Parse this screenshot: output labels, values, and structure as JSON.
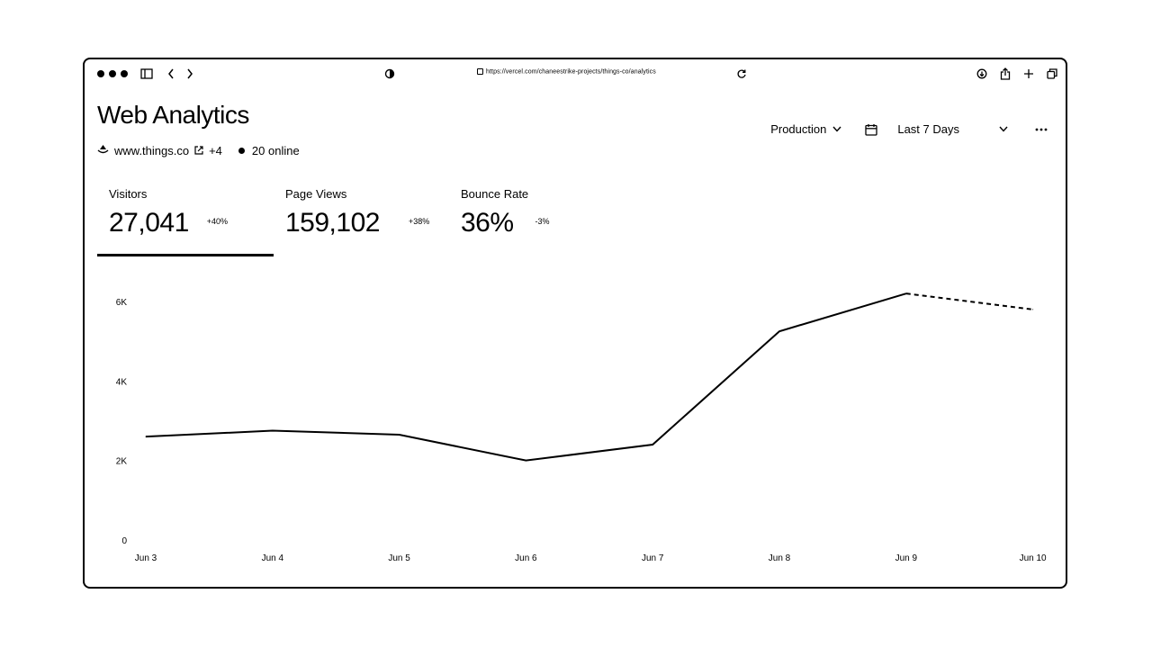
{
  "browser": {
    "url": "https://vercel.com/chaneestrike-projects/things-co/analytics"
  },
  "page": {
    "title": "Web Analytics",
    "site_domain": "www.things.co",
    "site_extra": "+4",
    "online": "20 online"
  },
  "controls": {
    "environment": "Production",
    "range": "Last 7 Days"
  },
  "metrics": [
    {
      "label": "Visitors",
      "value": "27,041",
      "change": "+40%"
    },
    {
      "label": "Page Views",
      "value": "159,102",
      "change": "+38%"
    },
    {
      "label": "Bounce Rate",
      "value": "36%",
      "change": "-3%"
    }
  ],
  "chart_data": {
    "type": "line",
    "categories": [
      "Jun 3",
      "Jun 4",
      "Jun 5",
      "Jun 6",
      "Jun 7",
      "Jun 8",
      "Jun 9",
      "Jun 10"
    ],
    "series": [
      {
        "values": [
          2600,
          2750,
          2650,
          2000,
          2400,
          5250,
          6200,
          5800
        ],
        "dashed_from_index": 6
      }
    ],
    "y_ticks": [
      "0",
      "2K",
      "4K",
      "6K"
    ],
    "y_tick_values": [
      0,
      2000,
      4000,
      6000
    ],
    "ylim": [
      0,
      6000
    ],
    "grid": false,
    "colors": {
      "line": "#000000"
    }
  }
}
